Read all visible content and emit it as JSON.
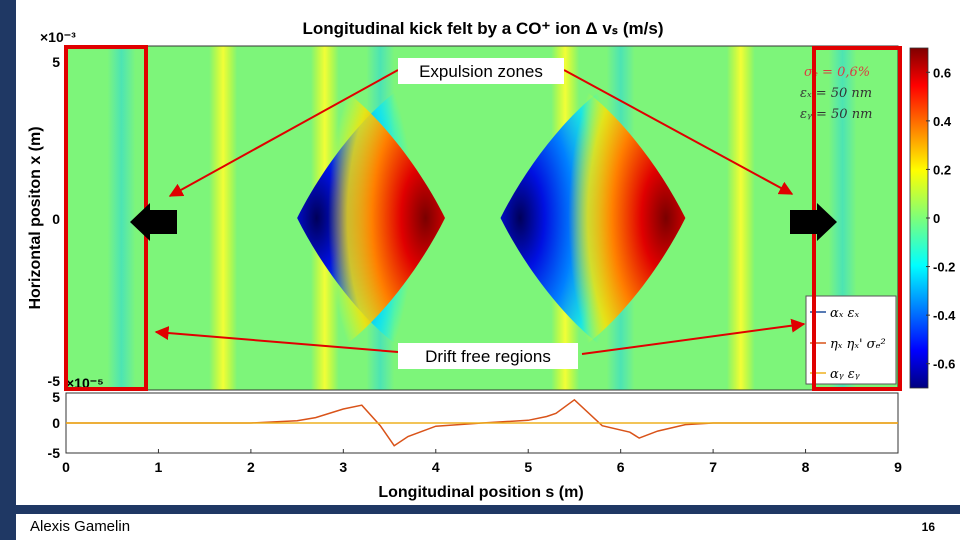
{
  "footer": {
    "author": "Alexis Gamelin",
    "page_number": "16"
  },
  "chart_data": [
    {
      "type": "heatmap",
      "title": "Longitudinal kick felt by a CO⁺ ion Δ vₛ (m/s)",
      "xlabel": "",
      "ylabel": "Horizontal positon x (m)",
      "xlim": [
        0,
        9
      ],
      "ylim": [
        -0.005,
        0.005
      ],
      "y_exponent_top": "×10⁻³",
      "y_exponent_bottom": "×10⁻⁵",
      "y_ticks": [
        "5",
        "0",
        "-5"
      ],
      "colorbar": {
        "ticks": [
          "0.6",
          "0.4",
          "0.2",
          "0",
          "-0.2",
          "-0.4",
          "-0.6"
        ],
        "range": [
          -0.7,
          0.7
        ]
      },
      "features": [
        {
          "label": "blue lobe",
          "center_s": 2.5,
          "sign": -1
        },
        {
          "label": "red lobe",
          "center_s": 4.1,
          "sign": 1
        },
        {
          "label": "blue lobe",
          "center_s": 4.7,
          "sign": -1
        },
        {
          "label": "red lobe",
          "center_s": 6.7,
          "sign": 1
        }
      ],
      "text_box": [
        "σₑ = 0,6%",
        "εₓ = 50 nm",
        "εᵧ = 50 nm"
      ],
      "annotations": {
        "expulsion": "Expulsion zones",
        "drift": "Drift free regions"
      },
      "regions": [
        {
          "name": "drift-free-left",
          "s_range": [
            0,
            0.85
          ]
        },
        {
          "name": "drift-free-right",
          "s_range": [
            8.15,
            9
          ]
        }
      ],
      "legend": [
        "αₓ εₓ",
        "ηₓ ηₓ' σₑ²",
        "αᵧ εᵧ"
      ]
    },
    {
      "type": "line",
      "xlabel": "Longitudinal position s (m)",
      "ylabel": "",
      "xlim": [
        0,
        9
      ],
      "ylim": [
        -5,
        5
      ],
      "x_ticks": [
        "0",
        "1",
        "2",
        "3",
        "4",
        "5",
        "6",
        "7",
        "8",
        "9"
      ],
      "y_ticks": [
        "5",
        "0",
        "-5"
      ],
      "series": [
        {
          "name": "αₓ εₓ",
          "color": "#d95319",
          "x": [
            0,
            2.0,
            2.5,
            2.7,
            3.0,
            3.2,
            3.4,
            3.55,
            3.7,
            4.0,
            4.5,
            5.0,
            5.2,
            5.3,
            5.5,
            5.8,
            6.1,
            6.2,
            6.4,
            6.7,
            7.0,
            9
          ],
          "y": [
            0,
            0,
            0.4,
            1.0,
            2.6,
            3.3,
            -0.5,
            -4.2,
            -2.5,
            -0.6,
            0,
            0.5,
            1.2,
            1.8,
            4.3,
            -0.5,
            -1.7,
            -2.8,
            -1.5,
            -0.3,
            0,
            0
          ]
        },
        {
          "name": "αᵧ εᵧ",
          "color": "#edb120",
          "x": [
            0,
            9
          ],
          "y": [
            0,
            0
          ]
        }
      ]
    }
  ]
}
